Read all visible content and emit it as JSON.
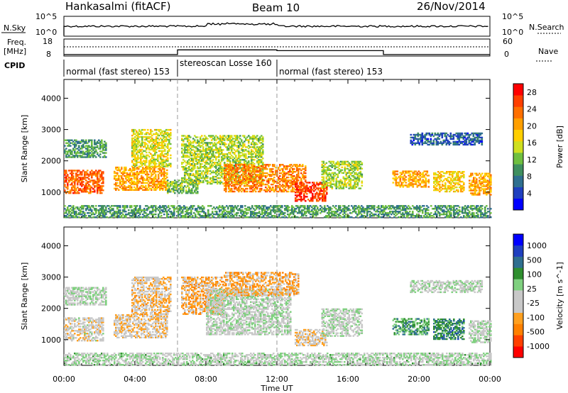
{
  "header": {
    "station": "Hankasalmi (fitACF)",
    "beam": "Beam 10",
    "date": "26/Nov/2014"
  },
  "summary_panel": {
    "nsky_label": "N.Sky",
    "nsearch_label": "N.Search",
    "freq_label_1": "Freq.",
    "freq_label_2": "[MHz]",
    "cpid_label": "CPID",
    "nave_label": "Nave",
    "left_ticks_top": [
      "10^5",
      "10^0"
    ],
    "right_ticks_top": [
      "10^5",
      "10^0"
    ],
    "left_ticks_freq": [
      "18",
      "8"
    ],
    "right_ticks_nave": [
      "60",
      "0"
    ],
    "freq_segments": [
      {
        "start": 0,
        "end": 6.4,
        "freq_mhz": 8.5
      },
      {
        "start": 6.4,
        "end": 12.0,
        "freq_mhz": 11.5
      },
      {
        "start": 12.0,
        "end": 18.0,
        "freq_mhz": 11.0
      },
      {
        "start": 18.0,
        "end": 24.0,
        "freq_mhz": 8.5
      }
    ],
    "cpid_segments": [
      {
        "start": 0,
        "end": 6.4,
        "label": "normal (fast stereo) 153"
      },
      {
        "start": 6.4,
        "end": 12.0,
        "label": "stereoscan Losse 160"
      },
      {
        "start": 12.0,
        "end": 24.0,
        "label": "normal (fast stereo) 153"
      }
    ]
  },
  "x_axis": {
    "label": "Time UT",
    "ticks": [
      "00:00",
      "04:00",
      "08:00",
      "12:00",
      "16:00",
      "20:00",
      "00:00"
    ],
    "range_hours": [
      0,
      24
    ]
  },
  "chart_data": [
    {
      "type": "heatmap",
      "name": "power",
      "ylabel": "Slant Range [km]",
      "yticks": [
        "1000",
        "2000",
        "3000",
        "4000"
      ],
      "ylim": [
        180,
        4600
      ],
      "colorbar": {
        "label": "Power [dB]",
        "ticks": [
          "4",
          "8",
          "12",
          "16",
          "20",
          "24",
          "28"
        ],
        "range": [
          0,
          30
        ],
        "colors": [
          "#0000ff",
          "#1f3fbf",
          "#2f6f8f",
          "#3f8f5f",
          "#6fbf3f",
          "#cfdf1f",
          "#ffcf00",
          "#ff9f00",
          "#ff6f00",
          "#ff3f00",
          "#ff0000"
        ]
      },
      "regions": [
        {
          "t0": 0.0,
          "t1": 2.2,
          "r0": 950,
          "r1": 1700,
          "value": 24
        },
        {
          "t0": 0.0,
          "t1": 2.4,
          "r0": 2100,
          "r1": 2650,
          "value": 10
        },
        {
          "t0": 2.8,
          "t1": 5.8,
          "r0": 1050,
          "r1": 1800,
          "value": 20
        },
        {
          "t0": 3.8,
          "t1": 6.0,
          "r0": 1800,
          "r1": 3000,
          "value": 16
        },
        {
          "t0": 5.8,
          "t1": 7.5,
          "r0": 950,
          "r1": 1400,
          "value": 12
        },
        {
          "t0": 6.6,
          "t1": 11.2,
          "r0": 1250,
          "r1": 2800,
          "value": 14
        },
        {
          "t0": 9.0,
          "t1": 13.6,
          "r0": 1000,
          "r1": 1900,
          "value": 22
        },
        {
          "t0": 13.0,
          "t1": 14.8,
          "r0": 700,
          "r1": 1300,
          "value": 26
        },
        {
          "t0": 14.5,
          "t1": 16.8,
          "r0": 1100,
          "r1": 2000,
          "value": 14
        },
        {
          "t0": 18.5,
          "t1": 20.5,
          "r0": 1150,
          "r1": 1650,
          "value": 20
        },
        {
          "t0": 20.8,
          "t1": 22.5,
          "r0": 1000,
          "r1": 1650,
          "value": 18
        },
        {
          "t0": 22.8,
          "t1": 24.0,
          "r0": 900,
          "r1": 1600,
          "value": 20
        },
        {
          "t0": 19.5,
          "t1": 23.5,
          "r0": 2500,
          "r1": 2900,
          "value": 6
        },
        {
          "t0": 0.0,
          "t1": 24.0,
          "r0": 180,
          "r1": 550,
          "value": 10
        }
      ]
    },
    {
      "type": "heatmap",
      "name": "velocity",
      "ylabel": "Slant Range [km]",
      "yticks": [
        "1000",
        "2000",
        "3000",
        "4000"
      ],
      "ylim": [
        180,
        4600
      ],
      "colorbar": {
        "label": "Velocity [m s^-1]",
        "ticks": [
          "1000",
          "500",
          "100",
          "25",
          "-25",
          "-100",
          "-500",
          "-1000"
        ],
        "range": [
          -1200,
          1200
        ],
        "colors": [
          "#ff0000",
          "#ff4000",
          "#ff8000",
          "#ffa020",
          "#c8c8c8",
          "#c8c8c8",
          "#7fd07f",
          "#2f8f2f",
          "#2f6f8f",
          "#1f3fbf",
          "#0000ff"
        ]
      },
      "regions": [
        {
          "t0": 0.0,
          "t1": 2.2,
          "r0": 950,
          "r1": 1700,
          "value": -150
        },
        {
          "t0": 0.0,
          "t1": 2.4,
          "r0": 2100,
          "r1": 2650,
          "value": 0
        },
        {
          "t0": 2.8,
          "t1": 5.8,
          "r0": 1050,
          "r1": 1800,
          "value": -250
        },
        {
          "t0": 3.8,
          "t1": 6.0,
          "r0": 1800,
          "r1": 3000,
          "value": -300
        },
        {
          "t0": 6.6,
          "t1": 9.0,
          "r0": 1800,
          "r1": 3000,
          "value": -400
        },
        {
          "t0": 8.0,
          "t1": 12.8,
          "r0": 1150,
          "r1": 2600,
          "value": 0
        },
        {
          "t0": 9.0,
          "t1": 13.2,
          "r0": 2400,
          "r1": 3150,
          "value": -400
        },
        {
          "t0": 13.0,
          "t1": 14.8,
          "r0": 800,
          "r1": 1300,
          "value": -200
        },
        {
          "t0": 14.5,
          "t1": 16.8,
          "r0": 1100,
          "r1": 2000,
          "value": 0
        },
        {
          "t0": 18.5,
          "t1": 20.5,
          "r0": 1150,
          "r1": 1650,
          "value": 400
        },
        {
          "t0": 20.8,
          "t1": 22.5,
          "r0": 1000,
          "r1": 1650,
          "value": 500
        },
        {
          "t0": 22.8,
          "t1": 24.0,
          "r0": 900,
          "r1": 1600,
          "value": 0
        },
        {
          "t0": 19.5,
          "t1": 23.5,
          "r0": 2500,
          "r1": 2900,
          "value": 0
        },
        {
          "t0": 0.0,
          "t1": 24.0,
          "r0": 180,
          "r1": 550,
          "value": 60
        }
      ]
    }
  ]
}
